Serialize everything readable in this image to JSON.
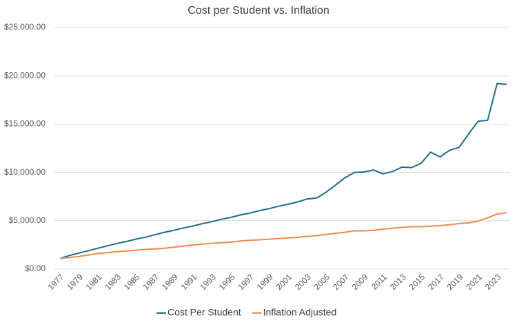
{
  "chart_data": {
    "type": "line",
    "title": "Cost per Student vs. Inflation",
    "categories": [
      "1977",
      null,
      "1979",
      null,
      "1981",
      null,
      "1983",
      null,
      "1985",
      null,
      "1987",
      null,
      "1989",
      null,
      "1991",
      null,
      "1993",
      null,
      "1995",
      null,
      "1997",
      null,
      "1999",
      null,
      "2001",
      null,
      "2003",
      null,
      "2005",
      null,
      "2007",
      null,
      "2009",
      null,
      "2011",
      null,
      "2013",
      null,
      "2015",
      null,
      "2017",
      null,
      "2019",
      null,
      "2021",
      null,
      "2023",
      null
    ],
    "series": [
      {
        "name": "Cost Per Student",
        "color": "#1f6b8a",
        "values": [
          1100,
          1400,
          1650,
          1900,
          2150,
          2400,
          2650,
          2850,
          3100,
          3300,
          3550,
          3800,
          4000,
          4250,
          4450,
          4700,
          4900,
          5150,
          5350,
          5600,
          5800,
          6050,
          6250,
          6500,
          6700,
          6950,
          7250,
          7350,
          7950,
          8700,
          9450,
          10000,
          10050,
          10250,
          9850,
          10100,
          10550,
          10500,
          10950,
          12100,
          11600,
          12300,
          12600,
          14000,
          15300,
          15400,
          19200,
          19100
        ]
      },
      {
        "name": "Inflation Adjusted",
        "color": "#f08a4b",
        "values": [
          1100,
          1200,
          1300,
          1450,
          1600,
          1700,
          1800,
          1870,
          1950,
          2030,
          2080,
          2150,
          2250,
          2380,
          2500,
          2580,
          2650,
          2730,
          2800,
          2900,
          2980,
          3030,
          3080,
          3150,
          3230,
          3280,
          3370,
          3460,
          3580,
          3700,
          3810,
          3960,
          3950,
          4010,
          4140,
          4230,
          4310,
          4370,
          4380,
          4430,
          4490,
          4590,
          4710,
          4780,
          4950,
          5300,
          5700,
          5850
        ]
      }
    ],
    "ylim": [
      0,
      25000
    ],
    "yticks": [
      {
        "value": 0,
        "label": "$0.00"
      },
      {
        "value": 5000,
        "label": "$5,000.00"
      },
      {
        "value": 10000,
        "label": "$10,000.00"
      },
      {
        "value": 15000,
        "label": "$15,000.00"
      },
      {
        "value": 20000,
        "label": "$20,000.00"
      },
      {
        "value": 25000,
        "label": "$25,000.00"
      }
    ],
    "grid": true,
    "legend": "bottom"
  }
}
